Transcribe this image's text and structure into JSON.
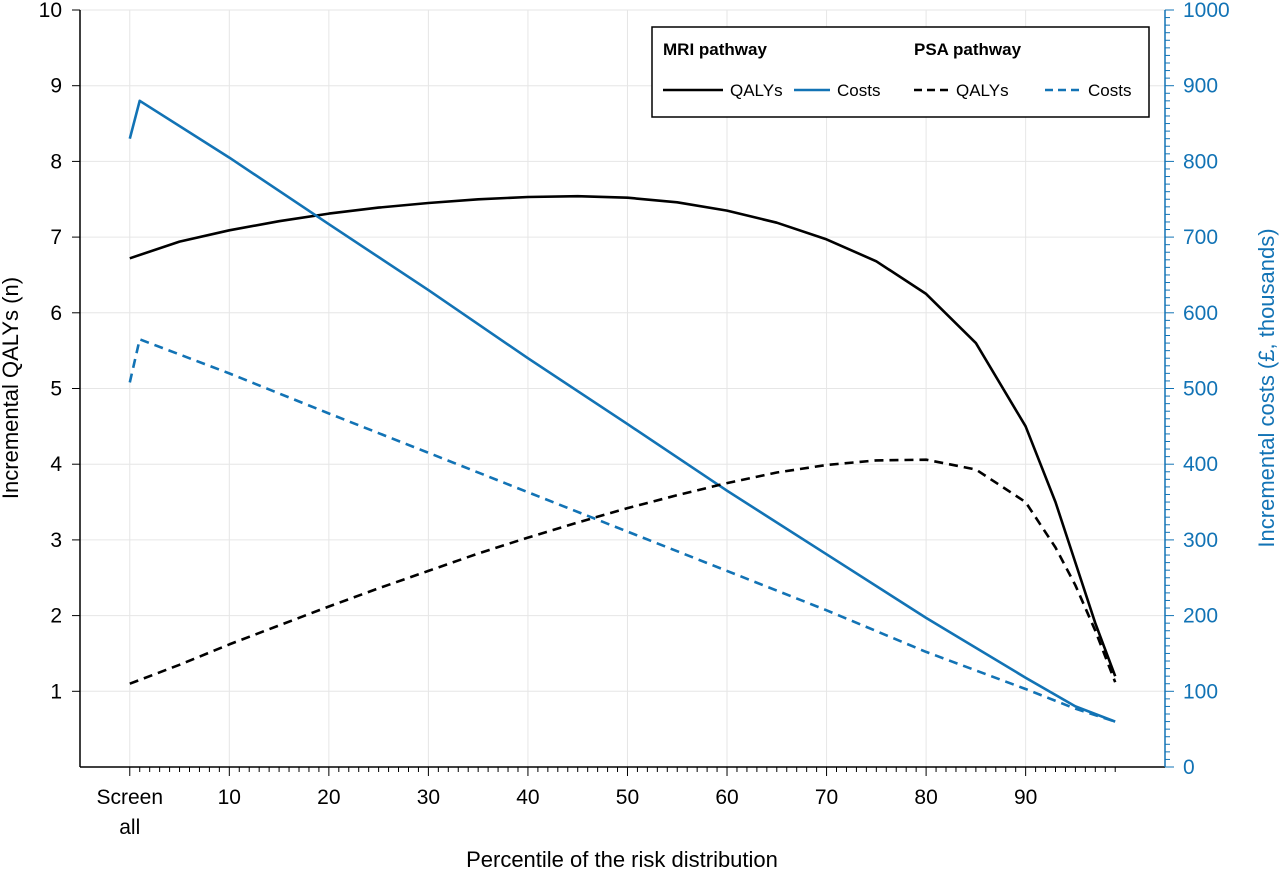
{
  "chart_data": {
    "type": "line",
    "xlabel": "Percentile of the risk distribution",
    "ylabel": "Incremental QALYs (n)",
    "y2label": "Incremental costs (£, thousands)",
    "xlim": [
      -5,
      104
    ],
    "ylim": [
      0,
      10
    ],
    "y2lim": [
      0,
      1000
    ],
    "x_ticks": [
      {
        "value": 0,
        "label": [
          "Screen",
          "all"
        ]
      },
      {
        "value": 10,
        "label": [
          "10"
        ]
      },
      {
        "value": 20,
        "label": [
          "20"
        ]
      },
      {
        "value": 30,
        "label": [
          "30"
        ]
      },
      {
        "value": 40,
        "label": [
          "40"
        ]
      },
      {
        "value": 50,
        "label": [
          "50"
        ]
      },
      {
        "value": 60,
        "label": [
          "60"
        ]
      },
      {
        "value": 70,
        "label": [
          "70"
        ]
      },
      {
        "value": 80,
        "label": [
          "80"
        ]
      },
      {
        "value": 90,
        "label": [
          "90"
        ]
      }
    ],
    "y_ticks": [
      "1",
      "2",
      "3",
      "4",
      "5",
      "6",
      "7",
      "8",
      "9",
      "10"
    ],
    "y2_ticks": [
      "0",
      "100",
      "200",
      "300",
      "400",
      "500",
      "600",
      "700",
      "800",
      "900",
      "1000"
    ],
    "grid": true,
    "legend": {
      "position": "top-right",
      "group_mri": "MRI pathway",
      "group_psa": "PSA pathway",
      "label_qalys": "QALYs",
      "label_costs": "Costs"
    },
    "colors": {
      "qalys": "#000000",
      "costs": "#1273b5"
    },
    "series": [
      {
        "group": "MRI pathway",
        "name": "QALYs",
        "axis": "left",
        "style": "solid",
        "x": [
          0,
          5,
          10,
          15,
          20,
          25,
          30,
          35,
          40,
          45,
          50,
          55,
          60,
          65,
          70,
          75,
          80,
          85,
          90,
          93,
          95,
          97,
          99
        ],
        "y": [
          6.72,
          6.94,
          7.09,
          7.21,
          7.31,
          7.39,
          7.45,
          7.5,
          7.53,
          7.54,
          7.52,
          7.46,
          7.35,
          7.19,
          6.97,
          6.68,
          6.25,
          5.6,
          4.5,
          3.5,
          2.7,
          1.9,
          1.2
        ]
      },
      {
        "group": "MRI pathway",
        "name": "Costs",
        "axis": "right",
        "style": "solid",
        "x": [
          0,
          1,
          10,
          20,
          30,
          40,
          50,
          60,
          70,
          80,
          90,
          95,
          99
        ],
        "y": [
          830,
          880,
          805,
          717,
          630,
          540,
          453,
          365,
          281,
          197,
          118,
          80,
          60
        ]
      },
      {
        "group": "PSA pathway",
        "name": "QALYs",
        "axis": "left",
        "style": "dashed",
        "x": [
          0,
          5,
          10,
          15,
          20,
          25,
          30,
          35,
          40,
          45,
          50,
          55,
          60,
          65,
          70,
          75,
          80,
          85,
          90,
          93,
          95,
          97,
          99
        ],
        "y": [
          1.1,
          1.35,
          1.62,
          1.87,
          2.12,
          2.36,
          2.59,
          2.82,
          3.03,
          3.23,
          3.42,
          3.59,
          3.75,
          3.89,
          3.99,
          4.05,
          4.06,
          3.93,
          3.5,
          2.9,
          2.4,
          1.8,
          1.12
        ]
      },
      {
        "group": "PSA pathway",
        "name": "Costs",
        "axis": "right",
        "style": "dashed",
        "x": [
          0,
          1,
          10,
          20,
          30,
          40,
          50,
          60,
          70,
          80,
          90,
          95,
          99
        ],
        "y": [
          508,
          565,
          520,
          467,
          415,
          363,
          311,
          259,
          207,
          152,
          103,
          77,
          60
        ]
      }
    ]
  }
}
